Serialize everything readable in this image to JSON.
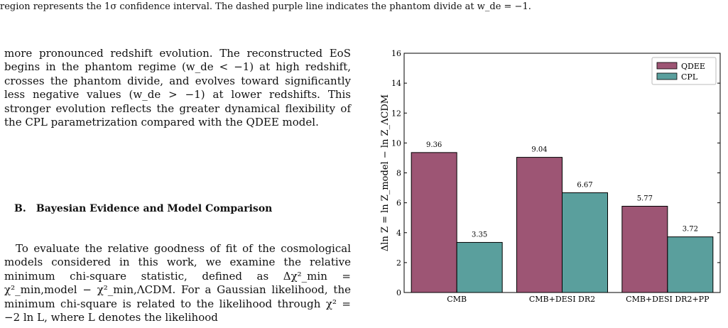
{
  "caption": "region represents the 1σ confidence interval. The dashed purple line indicates the phantom divide at w_de = −1.",
  "paragraph1": "more pronounced redshift evolution. The reconstructed EoS begins in the phantom regime (w_de < −1) at high redshift, crosses the phantom divide, and evolves toward significantly less negative values (w_de > −1) at lower redshifts. This stronger evolution reflects the greater dynamical flexibility of the CPL parametrization compared with the QDEE model.",
  "section": {
    "number": "B.",
    "title": "Bayesian Evidence and Model Comparison"
  },
  "paragraph2": "To evaluate the relative goodness of fit of the cosmological models considered in this work, we examine the relative minimum chi-square statistic, defined as Δχ²_min = χ²_min,model − χ²_min,ΛCDM. For a Gaussian likelihood, the minimum chi-square is related to the likelihood through χ² = −2 ln L, where L denotes the likelihood",
  "chart_data": {
    "type": "bar",
    "categories": [
      "CMB",
      "CMB+DESI DR2",
      "CMB+DESI DR2+PP"
    ],
    "series": [
      {
        "name": "QDEE",
        "values": [
          9.36,
          9.04,
          5.77
        ],
        "color": "#9d5574"
      },
      {
        "name": "CPL",
        "values": [
          3.35,
          6.67,
          3.72
        ],
        "color": "#5a9f9d"
      }
    ],
    "value_labels": [
      [
        "9.36",
        "9.04",
        "5.77"
      ],
      [
        "3.35",
        "6.67",
        "3.72"
      ]
    ],
    "ylabel": "Δln Z = ln Z_model − ln Z_ΛCDM",
    "ylim": [
      0,
      16
    ],
    "yticks": [
      0,
      2,
      4,
      6,
      8,
      10,
      12,
      14,
      16
    ],
    "legend_position": "top-right",
    "grid": false
  }
}
